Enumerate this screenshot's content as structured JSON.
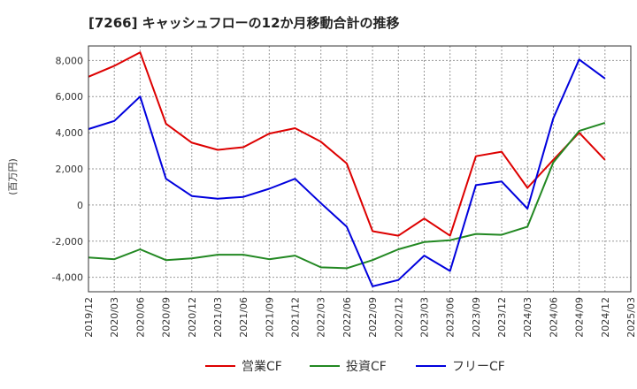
{
  "chart_data": {
    "type": "line",
    "title": "[7266]  キャッシュフローの12か月移動合計の推移",
    "ylabel": "(百万円)",
    "xlabel": "",
    "ylim": [
      -4800,
      8800
    ],
    "yticks": [
      8000,
      6000,
      4000,
      2000,
      0,
      -2000,
      -4000
    ],
    "ytick_labels": [
      "8,000",
      "6,000",
      "4,000",
      "2,000",
      "0",
      "-2,000",
      "-4,000"
    ],
    "categories": [
      "2019/12",
      "2020/03",
      "2020/06",
      "2020/09",
      "2020/12",
      "2021/03",
      "2021/06",
      "2021/09",
      "2021/12",
      "2022/03",
      "2022/06",
      "2022/09",
      "2022/12",
      "2023/03",
      "2023/06",
      "2023/09",
      "2023/12",
      "2024/03",
      "2024/06",
      "2024/09",
      "2024/12",
      "2025/03"
    ],
    "grid": true,
    "legend_position": "bottom",
    "series": [
      {
        "name": "営業CF",
        "color": "#dd0000",
        "values": [
          7100,
          7700,
          8450,
          4500,
          3450,
          3050,
          3200,
          3950,
          4250,
          3500,
          2300,
          -1450,
          -1700,
          -750,
          -1700,
          2700,
          2950,
          950,
          2500,
          4000,
          2500,
          null
        ]
      },
      {
        "name": "投資CF",
        "color": "#228822",
        "values": [
          -2900,
          -3000,
          -2450,
          -3050,
          -2950,
          -2750,
          -2750,
          -3000,
          -2800,
          -3450,
          -3500,
          -3050,
          -2450,
          -2050,
          -1950,
          -1600,
          -1650,
          -1200,
          2350,
          4100,
          4550,
          null
        ]
      },
      {
        "name": "フリーCF",
        "color": "#0000dd",
        "values": [
          4200,
          4650,
          6000,
          1450,
          500,
          350,
          450,
          900,
          1450,
          100,
          -1200,
          -4500,
          -4150,
          -2800,
          -3650,
          1100,
          1300,
          -200,
          4800,
          8050,
          7000,
          null
        ]
      }
    ]
  }
}
